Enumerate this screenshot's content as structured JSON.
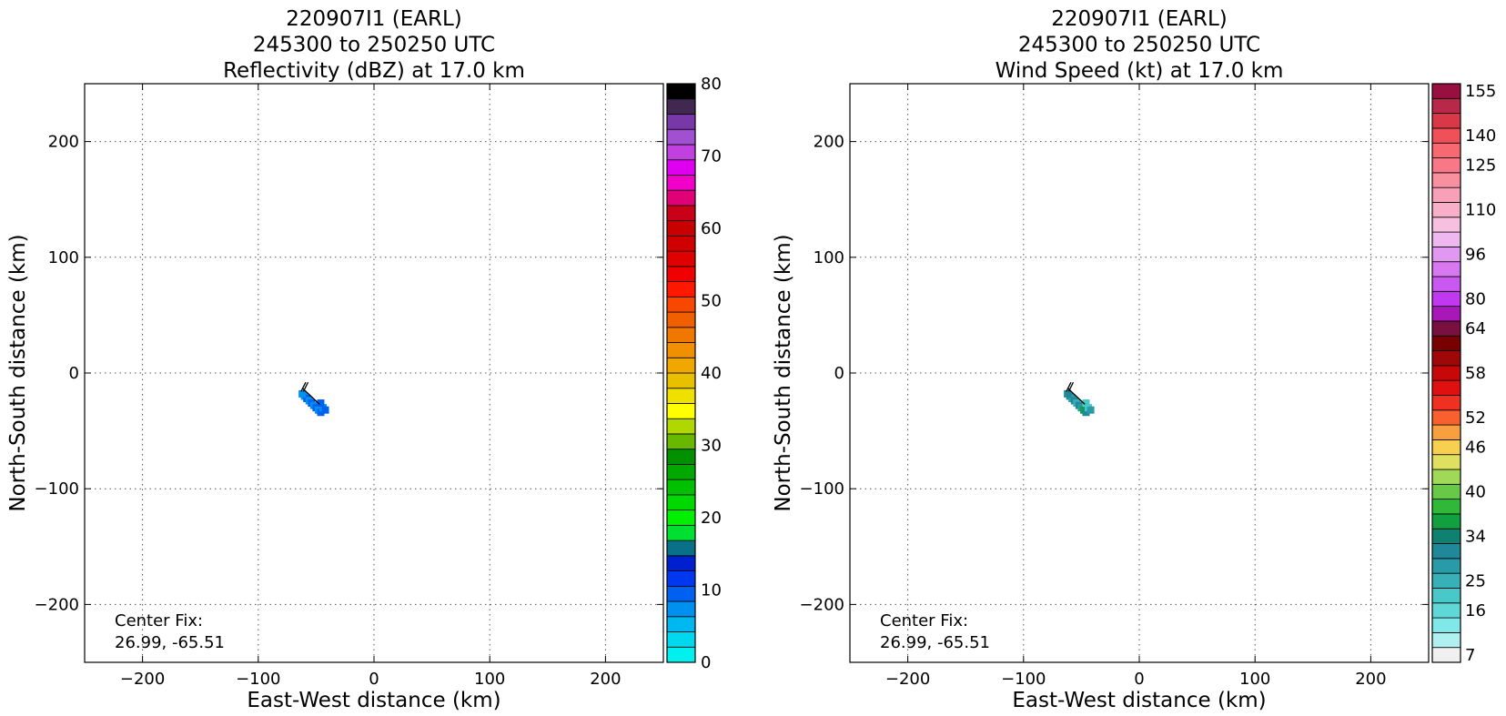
{
  "chart_data": [
    {
      "type": "heatmap",
      "title": [
        "220907I1 (EARL)",
        "245300 to 250250 UTC",
        "Reflectivity (dBZ) at 17.0 km"
      ],
      "xlabel": "East-West distance (km)",
      "ylabel": "North-South distance (km)",
      "xlim": [
        -250,
        250
      ],
      "ylim": [
        -250,
        250
      ],
      "xticks": [
        -200,
        -100,
        0,
        100,
        200
      ],
      "yticks": [
        -200,
        -100,
        0,
        100,
        200
      ],
      "grid": true,
      "annotation": [
        "Center Fix:",
        "26.99, -65.51"
      ],
      "colorbar": {
        "min": 0,
        "max": 80,
        "ticks": [
          0,
          10,
          20,
          30,
          40,
          50,
          60,
          70,
          80
        ],
        "colors": [
          "#00f0f0",
          "#00d8f0",
          "#00b8f0",
          "#0090f0",
          "#0060f0",
          "#0038f0",
          "#0020d0",
          "#087088",
          "#00e030",
          "#00f000",
          "#00d800",
          "#00c000",
          "#00a800",
          "#009000",
          "#68b800",
          "#b0d800",
          "#ffff00",
          "#f0e000",
          "#e8c000",
          "#f0a800",
          "#f09000",
          "#f07800",
          "#f06000",
          "#f84800",
          "#ff1800",
          "#f00000",
          "#e00000",
          "#d00000",
          "#c80000",
          "#c80018",
          "#e00078",
          "#f000c8",
          "#e000f0",
          "#c040e0",
          "#a050d0",
          "#7838a8",
          "#402850",
          "#000000"
        ]
      },
      "data_points": [
        {
          "x": -60,
          "y": -20,
          "v": 3
        },
        {
          "x": -58,
          "y": -22,
          "v": 4
        },
        {
          "x": -56,
          "y": -24,
          "v": 3
        },
        {
          "x": -54,
          "y": -26,
          "v": 4
        },
        {
          "x": -52,
          "y": -28,
          "v": 3
        },
        {
          "x": -50,
          "y": -30,
          "v": 4
        },
        {
          "x": -48,
          "y": -32,
          "v": 3
        },
        {
          "x": -46,
          "y": -34,
          "v": 4
        },
        {
          "x": -44,
          "y": -30,
          "v": 3
        },
        {
          "x": -42,
          "y": -32,
          "v": 4
        },
        {
          "x": -62,
          "y": -18,
          "v": 3
        },
        {
          "x": -46,
          "y": -26,
          "v": 4
        }
      ]
    },
    {
      "type": "heatmap",
      "title": [
        "220907I1 (EARL)",
        "245300 to 250250 UTC",
        "Wind Speed (kt) at 17.0 km"
      ],
      "xlabel": "East-West distance (km)",
      "ylabel": "North-South distance (km)",
      "xlim": [
        -250,
        250
      ],
      "ylim": [
        -250,
        250
      ],
      "xticks": [
        -200,
        -100,
        0,
        100,
        200
      ],
      "yticks": [
        -200,
        -100,
        0,
        100,
        200
      ],
      "grid": true,
      "annotation": [
        "Center Fix:",
        "26.99, -65.51"
      ],
      "colorbar": {
        "tick_labels": [
          "7",
          "16",
          "25",
          "34",
          "40",
          "46",
          "52",
          "58",
          "64",
          "80",
          "96",
          "110",
          "125",
          "140",
          "155"
        ],
        "colors": [
          "#f0f0f0",
          "#b0f0f0",
          "#80e8e8",
          "#60d8d8",
          "#48c8c8",
          "#38b0b8",
          "#289aa8",
          "#208898",
          "#108070",
          "#10a040",
          "#30b838",
          "#68c848",
          "#a0d858",
          "#e0e060",
          "#f8d050",
          "#f8a040",
          "#f86030",
          "#f03020",
          "#e01010",
          "#c80808",
          "#a00808",
          "#780000",
          "#781040",
          "#a818b8",
          "#c038f0",
          "#c858f0",
          "#d878f0",
          "#e098f0",
          "#f0b8f0",
          "#f8c0e0",
          "#f8b0c8",
          "#f8a0b8",
          "#f890a0",
          "#f87888",
          "#f86870",
          "#f05058",
          "#d83848",
          "#b82848",
          "#981040"
        ]
      },
      "data_points": [
        {
          "x": -60,
          "y": -20,
          "v": 7
        },
        {
          "x": -58,
          "y": -22,
          "v": 6
        },
        {
          "x": -56,
          "y": -24,
          "v": 7
        },
        {
          "x": -54,
          "y": -26,
          "v": 5
        },
        {
          "x": -52,
          "y": -28,
          "v": 7
        },
        {
          "x": -50,
          "y": -30,
          "v": 6
        },
        {
          "x": -48,
          "y": -32,
          "v": 9
        },
        {
          "x": -46,
          "y": -34,
          "v": 7
        },
        {
          "x": -44,
          "y": -30,
          "v": 4
        },
        {
          "x": -42,
          "y": -32,
          "v": 6
        },
        {
          "x": -62,
          "y": -18,
          "v": 7
        },
        {
          "x": -46,
          "y": -26,
          "v": 4
        }
      ]
    }
  ]
}
